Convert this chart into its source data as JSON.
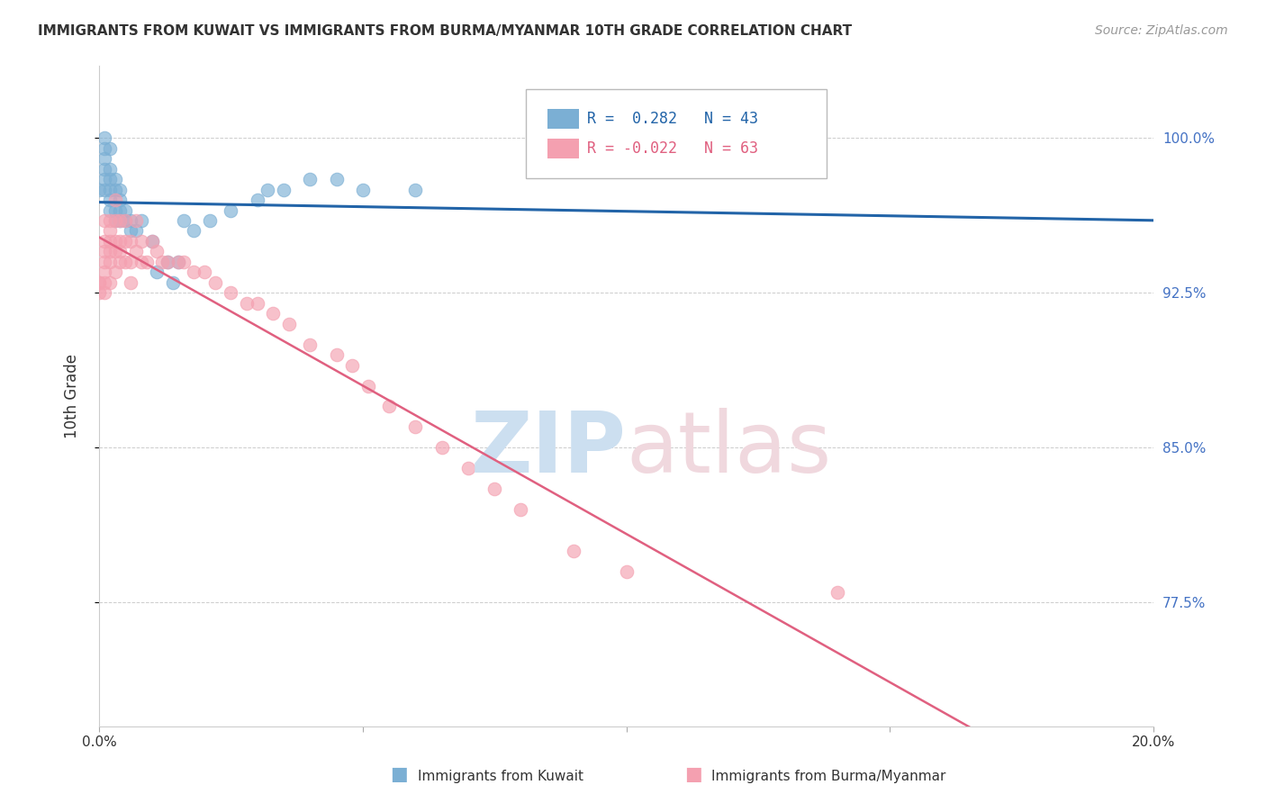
{
  "title": "IMMIGRANTS FROM KUWAIT VS IMMIGRANTS FROM BURMA/MYANMAR 10TH GRADE CORRELATION CHART",
  "source": "Source: ZipAtlas.com",
  "ylabel": "10th Grade",
  "right_ytick_labels": [
    "100.0%",
    "92.5%",
    "85.0%",
    "77.5%"
  ],
  "right_ytick_values": [
    1.0,
    0.925,
    0.85,
    0.775
  ],
  "xlim": [
    0.0,
    0.2
  ],
  "ylim": [
    0.715,
    1.035
  ],
  "blue_color": "#7bafd4",
  "pink_color": "#f4a0b0",
  "blue_line_color": "#2264a8",
  "pink_line_color": "#e06080",
  "blue_x": [
    0.0,
    0.001,
    0.001,
    0.001,
    0.001,
    0.001,
    0.001,
    0.002,
    0.002,
    0.002,
    0.002,
    0.002,
    0.002,
    0.003,
    0.003,
    0.003,
    0.003,
    0.004,
    0.004,
    0.004,
    0.004,
    0.005,
    0.005,
    0.006,
    0.006,
    0.007,
    0.008,
    0.01,
    0.011,
    0.013,
    0.014,
    0.015,
    0.016,
    0.018,
    0.021,
    0.025,
    0.03,
    0.032,
    0.035,
    0.04,
    0.045,
    0.05,
    0.06
  ],
  "blue_y": [
    0.975,
    1.0,
    0.995,
    0.99,
    0.985,
    0.98,
    0.975,
    0.995,
    0.985,
    0.98,
    0.975,
    0.97,
    0.965,
    0.98,
    0.975,
    0.965,
    0.96,
    0.975,
    0.97,
    0.965,
    0.96,
    0.965,
    0.96,
    0.96,
    0.955,
    0.955,
    0.96,
    0.95,
    0.935,
    0.94,
    0.93,
    0.94,
    0.96,
    0.955,
    0.96,
    0.965,
    0.97,
    0.975,
    0.975,
    0.98,
    0.98,
    0.975,
    0.975
  ],
  "pink_x": [
    0.0,
    0.0,
    0.0,
    0.001,
    0.001,
    0.001,
    0.001,
    0.001,
    0.001,
    0.001,
    0.002,
    0.002,
    0.002,
    0.002,
    0.002,
    0.002,
    0.003,
    0.003,
    0.003,
    0.003,
    0.003,
    0.004,
    0.004,
    0.004,
    0.004,
    0.005,
    0.005,
    0.005,
    0.006,
    0.006,
    0.006,
    0.007,
    0.007,
    0.008,
    0.008,
    0.009,
    0.01,
    0.011,
    0.012,
    0.013,
    0.015,
    0.016,
    0.018,
    0.02,
    0.022,
    0.025,
    0.028,
    0.03,
    0.033,
    0.036,
    0.04,
    0.045,
    0.048,
    0.051,
    0.055,
    0.06,
    0.065,
    0.07,
    0.075,
    0.08,
    0.09,
    0.1,
    0.14
  ],
  "pink_y": [
    0.93,
    0.93,
    0.925,
    0.96,
    0.95,
    0.945,
    0.94,
    0.935,
    0.93,
    0.925,
    0.96,
    0.955,
    0.95,
    0.945,
    0.94,
    0.93,
    0.97,
    0.96,
    0.95,
    0.945,
    0.935,
    0.96,
    0.95,
    0.945,
    0.94,
    0.96,
    0.95,
    0.94,
    0.95,
    0.94,
    0.93,
    0.96,
    0.945,
    0.95,
    0.94,
    0.94,
    0.95,
    0.945,
    0.94,
    0.94,
    0.94,
    0.94,
    0.935,
    0.935,
    0.93,
    0.925,
    0.92,
    0.92,
    0.915,
    0.91,
    0.9,
    0.895,
    0.89,
    0.88,
    0.87,
    0.86,
    0.85,
    0.84,
    0.83,
    0.82,
    0.8,
    0.79,
    0.78
  ]
}
